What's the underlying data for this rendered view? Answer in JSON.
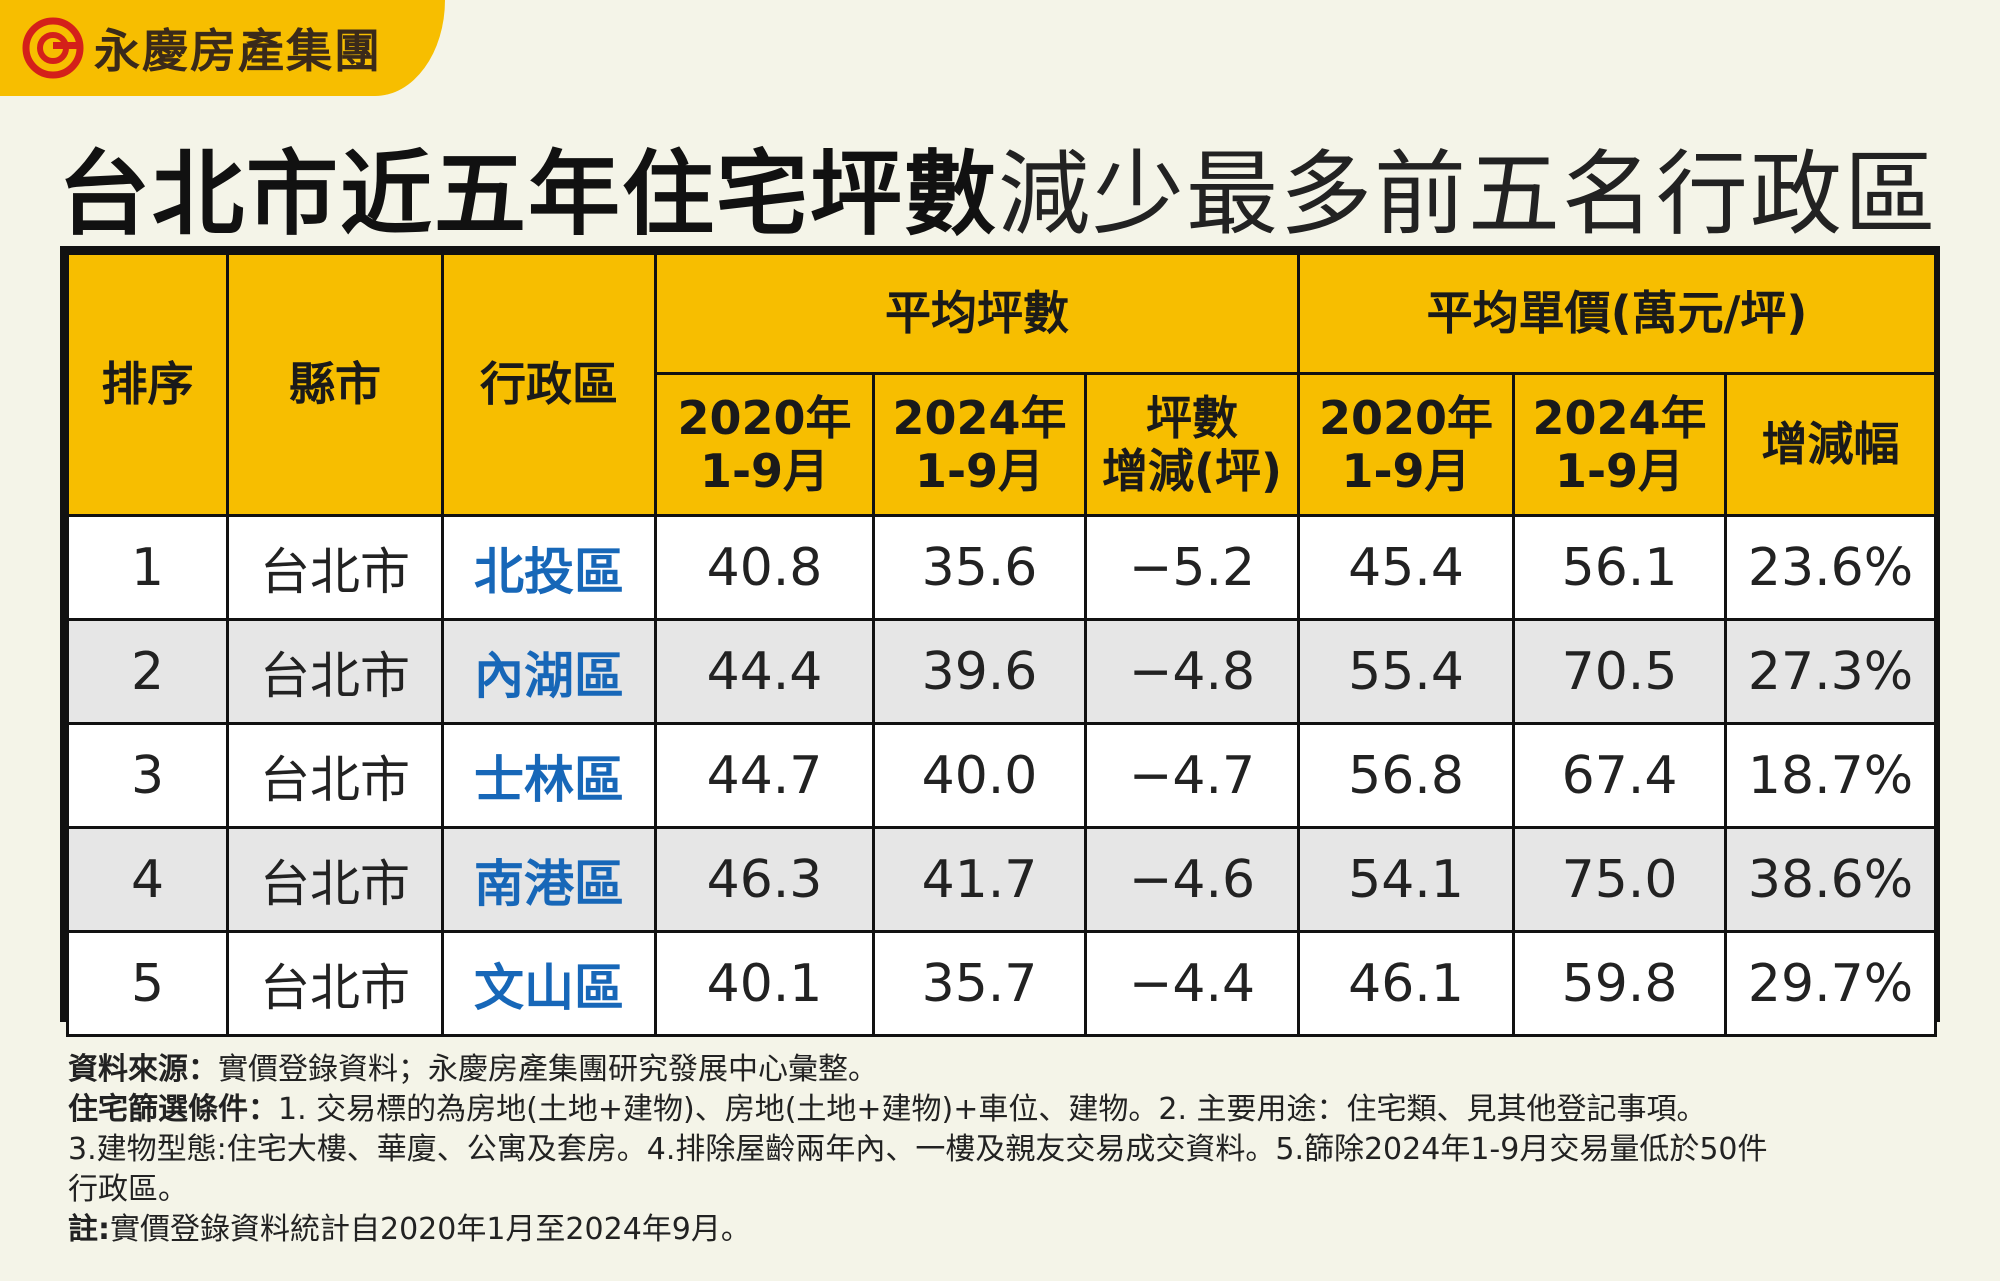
{
  "brand": {
    "name": "永慶房產集團",
    "color": "#f7be00"
  },
  "title": {
    "bold": "台北市近五年住宅坪數",
    "light": "減少最多前五名行政區"
  },
  "chart_data": {
    "type": "table",
    "headers": {
      "rank": "排序",
      "city": "縣市",
      "district": "行政區",
      "group_area": "平均坪數",
      "group_price": "平均單價(萬元/坪)",
      "area_2020": [
        "2020年",
        "1-9月"
      ],
      "area_2024": [
        "2024年",
        "1-9月"
      ],
      "area_change": [
        "坪數",
        "增減(坪)"
      ],
      "price_2020": [
        "2020年",
        "1-9月"
      ],
      "price_2024": [
        "2024年",
        "1-9月"
      ],
      "price_change": "增減幅"
    },
    "rows": [
      {
        "rank": "1",
        "city": "台北市",
        "district": "北投區",
        "area_2020": "40.8",
        "area_2024": "35.6",
        "area_change": "−5.2",
        "price_2020": "45.4",
        "price_2024": "56.1",
        "price_change": "23.6%"
      },
      {
        "rank": "2",
        "city": "台北市",
        "district": "內湖區",
        "area_2020": "44.4",
        "area_2024": "39.6",
        "area_change": "−4.8",
        "price_2020": "55.4",
        "price_2024": "70.5",
        "price_change": "27.3%"
      },
      {
        "rank": "3",
        "city": "台北市",
        "district": "士林區",
        "area_2020": "44.7",
        "area_2024": "40.0",
        "area_change": "−4.7",
        "price_2020": "56.8",
        "price_2024": "67.4",
        "price_change": "18.7%"
      },
      {
        "rank": "4",
        "city": "台北市",
        "district": "南港區",
        "area_2020": "46.3",
        "area_2024": "41.7",
        "area_change": "−4.6",
        "price_2020": "54.1",
        "price_2024": "75.0",
        "price_change": "38.6%"
      },
      {
        "rank": "5",
        "city": "台北市",
        "district": "文山區",
        "area_2020": "40.1",
        "area_2024": "35.7",
        "area_change": "−4.4",
        "price_2020": "46.1",
        "price_2024": "59.8",
        "price_change": "29.7%"
      }
    ]
  },
  "notes": {
    "source_label": "資料來源：",
    "source_text": "實價登錄資料；永慶房產集團研究發展中心彙整。",
    "filter_label": "住宅篩選條件：",
    "filter_line1": "1. 交易標的為房地(土地+建物)、房地(土地+建物)+車位、建物。2. 主要用途：住宅類、見其他登記事項。",
    "filter_line2": "3.建物型態:住宅大樓、華廈、公寓及套房。4.排除屋齡兩年內、一樓及親友交易成交資料。5.篩除2024年1-9月交易量低於50件",
    "filter_line3": "行政區。",
    "note_label": "註:",
    "note_text": "實價登錄資料統計自2020年1月至2024年9月。"
  }
}
